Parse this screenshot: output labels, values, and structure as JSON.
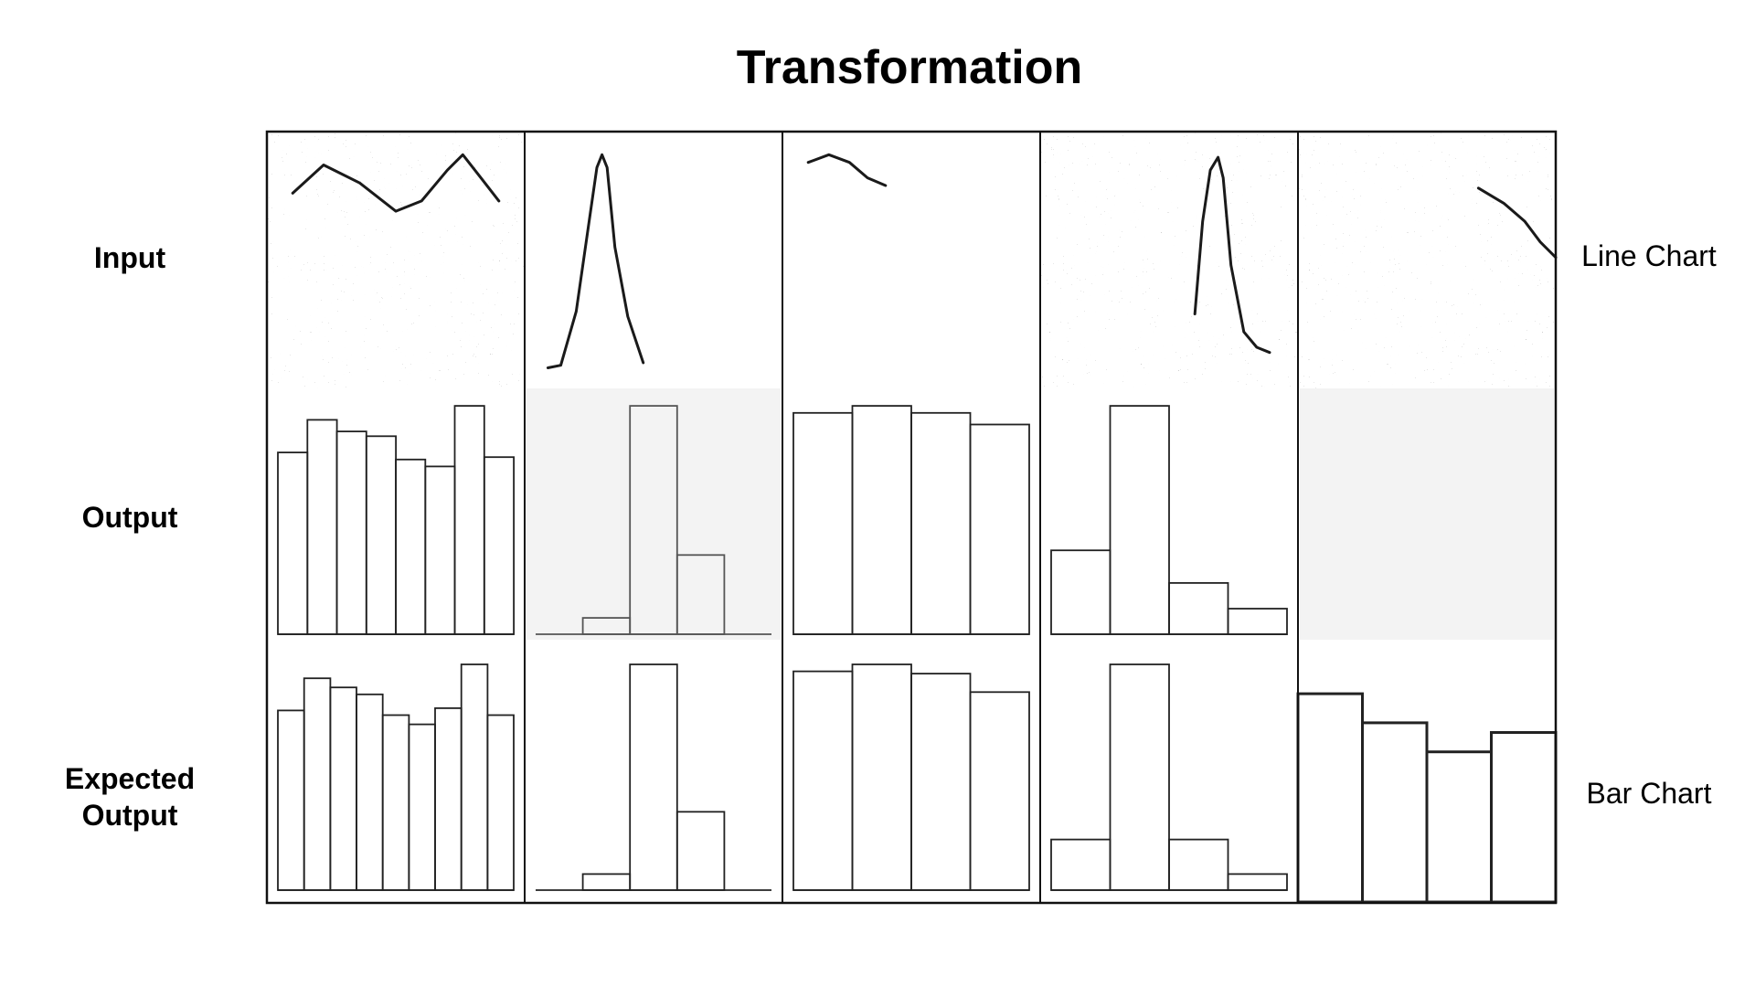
{
  "title": "Transformation",
  "rows": [
    {
      "label": "Input"
    },
    {
      "label": "Output"
    },
    {
      "label": "Expected Output"
    }
  ],
  "side_labels": {
    "top": "Line Chart",
    "bottom": "Bar Chart"
  },
  "columns": [
    {
      "input": {
        "noisy": true,
        "curve": "wave"
      },
      "output": {
        "bars": [
          0.78,
          0.92,
          0.87,
          0.85,
          0.75,
          0.72,
          0.98,
          0.76
        ],
        "faint": false
      },
      "expected": {
        "bars": [
          0.78,
          0.92,
          0.88,
          0.85,
          0.76,
          0.72,
          0.79,
          0.98,
          0.76
        ]
      }
    },
    {
      "input": {
        "noisy": false,
        "curve": "peak"
      },
      "output": {
        "bars": [
          0,
          0.07,
          0.98,
          0.34,
          0
        ],
        "faint": true
      },
      "expected": {
        "bars": [
          0,
          0.07,
          0.98,
          0.34,
          0
        ]
      }
    },
    {
      "input": {
        "noisy": false,
        "curve": "arc"
      },
      "output": {
        "bars": [
          0.95,
          0.98,
          0.95,
          0.9
        ],
        "faint": false
      },
      "expected": {
        "bars": [
          0.95,
          0.98,
          0.94,
          0.86
        ]
      }
    },
    {
      "input": {
        "noisy": true,
        "curve": "sharp-peak"
      },
      "output": {
        "bars": [
          0.36,
          0.98,
          0.22,
          0.11
        ],
        "faint": false
      },
      "expected": {
        "bars": [
          0.22,
          0.98,
          0.22,
          0.07
        ]
      }
    },
    {
      "input": {
        "noisy": true,
        "curve": "descending"
      },
      "output": {
        "bars": [],
        "faint": true
      },
      "expected": {
        "bars": [
          0.86,
          0.74,
          0.62,
          0.7
        ],
        "bold": true
      }
    }
  ]
}
